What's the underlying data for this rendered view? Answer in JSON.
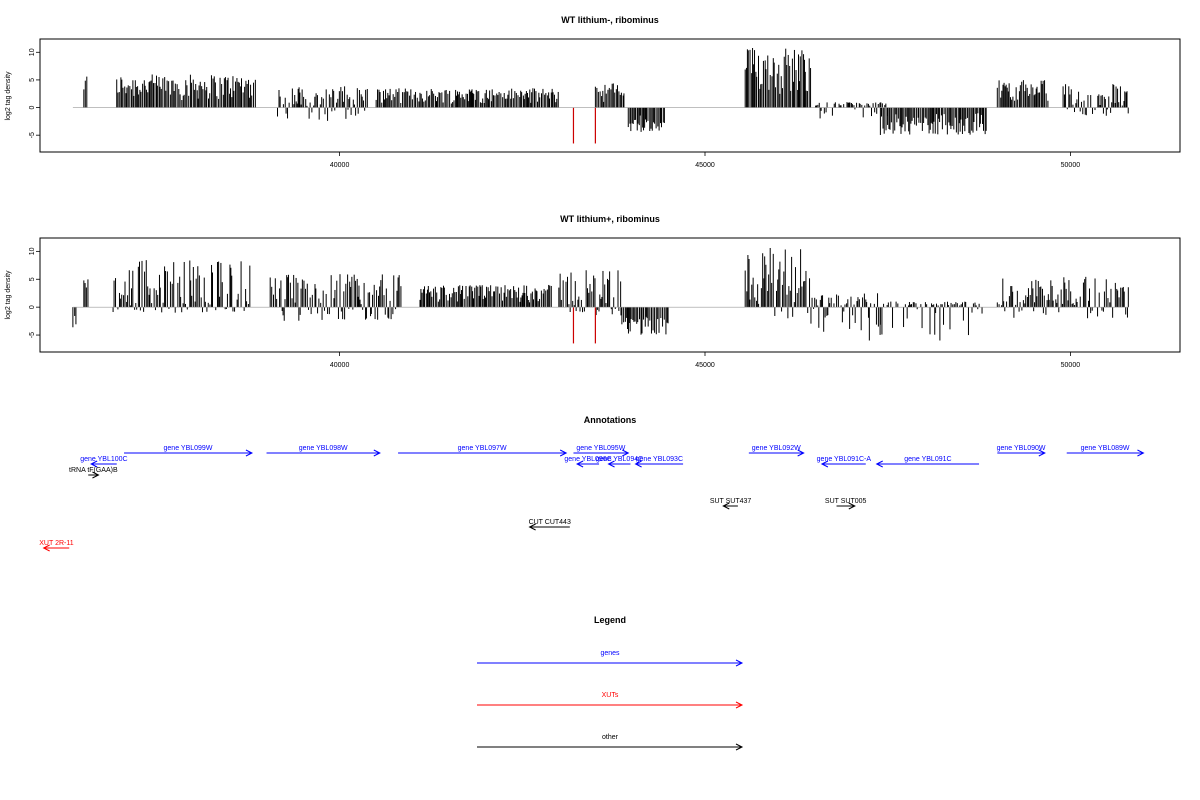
{
  "chart_data": [
    {
      "type": "bar",
      "title": "WT lithium-, ribominus",
      "xlabel": "",
      "ylabel": "log2 tag density",
      "xlim": [
        35900,
        51500
      ],
      "ylim": [
        -7.5,
        11.5
      ],
      "x_ticks": [
        40000,
        45000,
        50000
      ],
      "y_ticks": [
        -5,
        0,
        5,
        10
      ],
      "y_tick_labels": [
        "-5",
        "0",
        "5",
        "10"
      ],
      "grid": false,
      "segments": [
        {
          "from": 36500,
          "to": 36560,
          "min": 0,
          "max": 6,
          "color": "#000000"
        },
        {
          "from": 36950,
          "to": 38850,
          "min": 0,
          "max": 6,
          "color": "#000000"
        },
        {
          "from": 39150,
          "to": 40400,
          "min": -2.5,
          "max": 4,
          "color": "#000000"
        },
        {
          "from": 40500,
          "to": 43000,
          "min": 0,
          "max": 3.5,
          "color": "#000000"
        },
        {
          "from": 43500,
          "to": 43900,
          "min": 0,
          "max": 4.5,
          "color": "#000000"
        },
        {
          "from": 43950,
          "to": 44450,
          "min": -4.5,
          "max": 0,
          "color": "#000000"
        },
        {
          "from": 45550,
          "to": 46450,
          "min": 0,
          "max": 11,
          "color": "#000000"
        },
        {
          "from": 46500,
          "to": 47500,
          "min": -2,
          "max": 1,
          "color": "#000000"
        },
        {
          "from": 47400,
          "to": 48850,
          "min": -5,
          "max": 0,
          "color": "#000000"
        },
        {
          "from": 49000,
          "to": 49700,
          "min": 0,
          "max": 5,
          "color": "#000000"
        },
        {
          "from": 49900,
          "to": 50800,
          "min": -1.5,
          "max": 4.5,
          "color": "#000000"
        }
      ],
      "highlight_marks": [
        {
          "x": 43200,
          "value": -6.5,
          "color": "#cc0000"
        },
        {
          "x": 43500,
          "value": -6.5,
          "color": "#cc0000"
        }
      ]
    },
    {
      "type": "bar",
      "title": "WT lithium+, ribominus",
      "xlabel": "",
      "ylabel": "log2 tag density",
      "xlim": [
        35900,
        51500
      ],
      "ylim": [
        -7.5,
        11.5
      ],
      "x_ticks": [
        40000,
        45000,
        50000
      ],
      "y_ticks": [
        -5,
        0,
        5,
        10
      ],
      "y_tick_labels": [
        "-5",
        "0",
        "5",
        "10"
      ],
      "grid": false,
      "segments": [
        {
          "from": 36350,
          "to": 36400,
          "min": -4,
          "max": 0,
          "color": "#000000"
        },
        {
          "from": 36500,
          "to": 36560,
          "min": 0,
          "max": 6,
          "color": "#000000"
        },
        {
          "from": 36900,
          "to": 38800,
          "min": -1,
          "max": 8.5,
          "color": "#000000"
        },
        {
          "from": 39050,
          "to": 40850,
          "min": -2.5,
          "max": 6,
          "color": "#000000"
        },
        {
          "from": 41100,
          "to": 42900,
          "min": 0,
          "max": 4,
          "color": "#000000"
        },
        {
          "from": 43000,
          "to": 43850,
          "min": -1.5,
          "max": 7,
          "color": "#000000"
        },
        {
          "from": 43850,
          "to": 44500,
          "min": -5,
          "max": 0,
          "color": "#000000"
        },
        {
          "from": 45550,
          "to": 46450,
          "min": -2,
          "max": 11,
          "color": "#000000"
        },
        {
          "from": 46450,
          "to": 47400,
          "min": -6,
          "max": 2.5,
          "color": "#000000"
        },
        {
          "from": 47400,
          "to": 48800,
          "min": -6,
          "max": 1,
          "color": "#000000"
        },
        {
          "from": 49000,
          "to": 50800,
          "min": -2,
          "max": 5.5,
          "color": "#000000"
        }
      ],
      "highlight_marks": [
        {
          "x": 43200,
          "value": -6.5,
          "color": "#cc0000"
        },
        {
          "x": 43500,
          "value": -6.5,
          "color": "#cc0000"
        }
      ]
    }
  ],
  "annotations": {
    "title": "Annotations",
    "features": [
      {
        "label": "gene YBL099W",
        "start": 37050,
        "end": 38800,
        "direction": "right",
        "class": "gene",
        "row": 0
      },
      {
        "label": "gene YBL098W",
        "start": 39000,
        "end": 40550,
        "direction": "right",
        "class": "gene",
        "row": 0
      },
      {
        "label": "gene YBL097W",
        "start": 40800,
        "end": 43100,
        "direction": "right",
        "class": "gene",
        "row": 0
      },
      {
        "label": "gene YBL095W",
        "start": 43200,
        "end": 43950,
        "direction": "right",
        "class": "gene",
        "row": 0
      },
      {
        "label": "gene YBL092W",
        "start": 45600,
        "end": 46350,
        "direction": "right",
        "class": "gene",
        "row": 0
      },
      {
        "label": "gene YBL090W",
        "start": 49000,
        "end": 49650,
        "direction": "right",
        "class": "gene",
        "row": 0
      },
      {
        "label": "gene YBL089W",
        "start": 49950,
        "end": 51000,
        "direction": "right",
        "class": "gene",
        "row": 0
      },
      {
        "label": "gene YBL100C",
        "start": 36600,
        "end": 36950,
        "direction": "left",
        "class": "gene",
        "row": 1
      },
      {
        "label": "gene YBL096C",
        "start": 43250,
        "end": 43550,
        "direction": "left",
        "class": "gene",
        "row": 1
      },
      {
        "label": "gene YBL094C",
        "start": 43680,
        "end": 43980,
        "direction": "left",
        "class": "gene",
        "row": 1
      },
      {
        "label": "gene YBL093C",
        "start": 44050,
        "end": 44700,
        "direction": "left",
        "class": "gene",
        "row": 1
      },
      {
        "label": "gene YBL091C-A",
        "start": 46600,
        "end": 47200,
        "direction": "left",
        "class": "gene",
        "row": 1
      },
      {
        "label": "gene YBL091C",
        "start": 47350,
        "end": 48750,
        "direction": "left",
        "class": "gene",
        "row": 1
      },
      {
        "label": "tRNA tF(GAA)B",
        "start": 36560,
        "end": 36700,
        "direction": "right",
        "class": "other",
        "row": 2
      },
      {
        "label": "SUT SUT437",
        "start": 45250,
        "end": 45450,
        "direction": "left",
        "class": "other",
        "row": 3
      },
      {
        "label": "SUT SUT005",
        "start": 46800,
        "end": 47050,
        "direction": "right",
        "class": "other",
        "row": 3
      },
      {
        "label": "CUT CUT443",
        "start": 42600,
        "end": 43150,
        "direction": "left",
        "class": "other",
        "row": 4
      },
      {
        "label": "XUT 2R-11",
        "start": 35950,
        "end": 36300,
        "direction": "left",
        "class": "xut",
        "row": 5
      }
    ]
  },
  "legend": {
    "title": "Legend",
    "items": [
      {
        "label": "genes",
        "color": "#0000ff"
      },
      {
        "label": "XUTs",
        "color": "#ff0000"
      },
      {
        "label": "other",
        "color": "#000000"
      }
    ]
  },
  "colors": {
    "gene": "#0000ff",
    "xut": "#ff0000",
    "other": "#000000",
    "bars": "#000000",
    "highlight": "#cc0000"
  }
}
